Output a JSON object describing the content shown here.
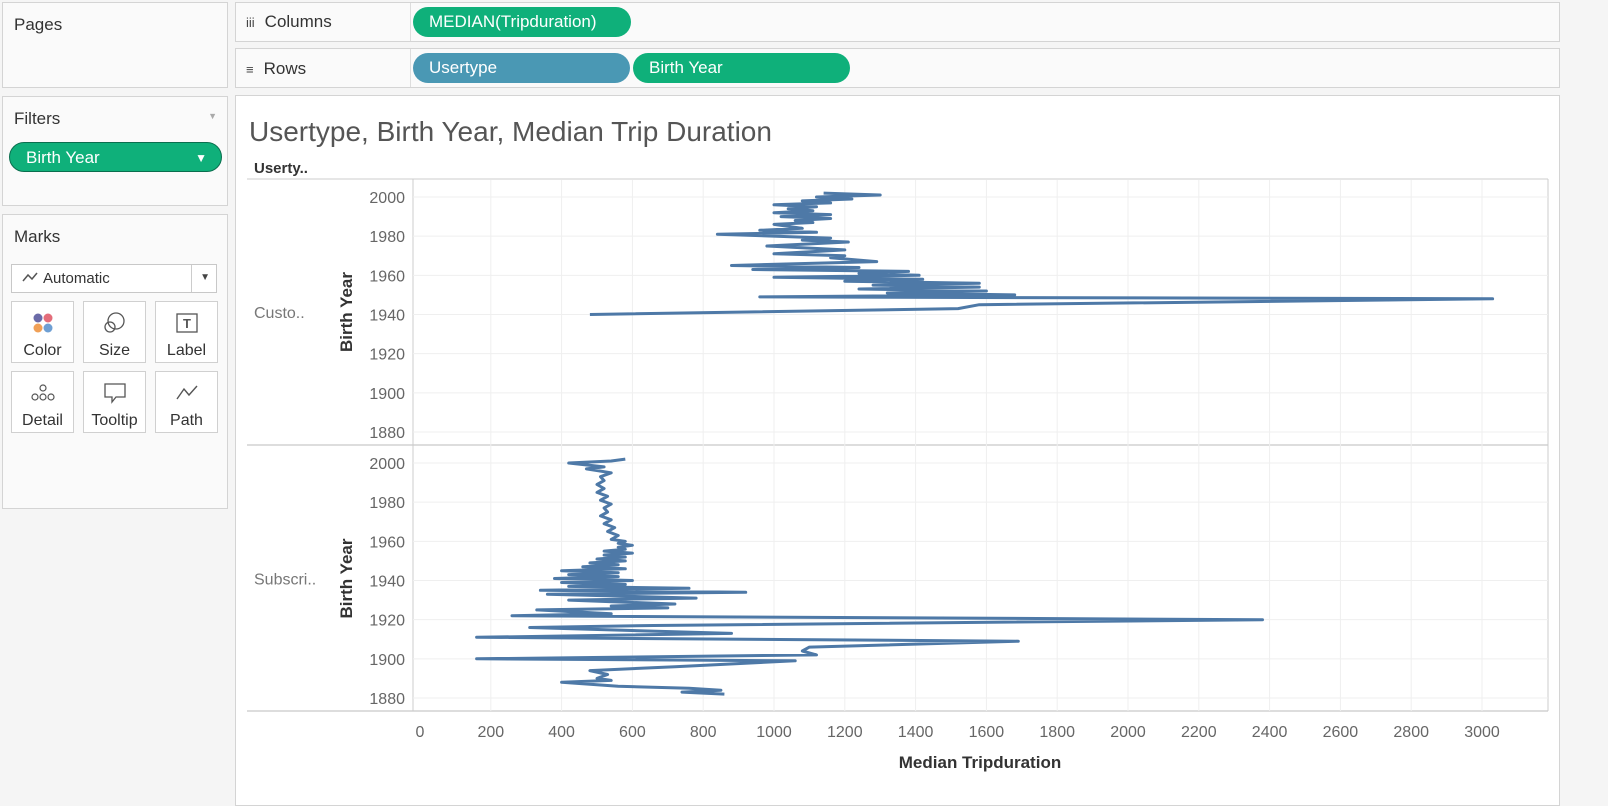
{
  "pages": {
    "title": "Pages"
  },
  "filters": {
    "title": "Filters",
    "pill_label": "Birth Year"
  },
  "marks": {
    "title": "Marks",
    "type_select": "Automatic",
    "buttons": [
      {
        "label": "Color",
        "icon": "color-dots-icon"
      },
      {
        "label": "Size",
        "icon": "size-circles-icon"
      },
      {
        "label": "Label",
        "icon": "text-label-icon"
      },
      {
        "label": "Detail",
        "icon": "detail-dots-icon"
      },
      {
        "label": "Tooltip",
        "icon": "speech-bubble-icon"
      },
      {
        "label": "Path",
        "icon": "path-line-icon"
      }
    ]
  },
  "shelves": {
    "columns": {
      "label": "Columns",
      "icon": "columns-icon",
      "pills": [
        "MEDIAN(Tripduration)"
      ]
    },
    "rows": {
      "label": "Rows",
      "icon": "rows-icon",
      "pills": [
        "Usertype",
        "Birth Year"
      ]
    }
  },
  "colors": {
    "green_pill": "#0fb07a",
    "blue_pill": "#4a98b4",
    "line": "#4e79a7"
  },
  "chart_data": {
    "type": "line",
    "title": "Usertype, Birth Year, Median Trip Duration",
    "row_header": "Userty..",
    "xlabel": "Median Tripduration",
    "ylabel": "Birth Year",
    "xlim": [
      0,
      3100
    ],
    "x_ticks": [
      0,
      200,
      400,
      600,
      800,
      1000,
      1200,
      1400,
      1600,
      1800,
      2000,
      2200,
      2400,
      2600,
      2800,
      3000
    ],
    "y_ticks": [
      2000,
      1980,
      1960,
      1940,
      1920,
      1900,
      1880
    ],
    "ylim": [
      1876,
      2005
    ],
    "grid": true,
    "panes": [
      {
        "label": "Custo..",
        "points": [
          [
            480,
            1940
          ],
          [
            1520,
            1943
          ],
          [
            1580,
            1945
          ],
          [
            3030,
            1948
          ],
          [
            960,
            1949
          ],
          [
            1680,
            1950
          ],
          [
            1320,
            1951
          ],
          [
            1600,
            1952
          ],
          [
            1240,
            1953
          ],
          [
            1580,
            1954
          ],
          [
            1280,
            1955
          ],
          [
            1580,
            1956
          ],
          [
            1200,
            1957
          ],
          [
            1420,
            1958
          ],
          [
            1000,
            1959
          ],
          [
            1410,
            1960
          ],
          [
            1240,
            1961
          ],
          [
            1380,
            1962
          ],
          [
            940,
            1963
          ],
          [
            1240,
            1964
          ],
          [
            880,
            1965
          ],
          [
            1290,
            1967
          ],
          [
            1160,
            1969
          ],
          [
            1200,
            1970
          ],
          [
            1000,
            1971
          ],
          [
            1200,
            1973
          ],
          [
            980,
            1975
          ],
          [
            1210,
            1977
          ],
          [
            1080,
            1978
          ],
          [
            1160,
            1979
          ],
          [
            840,
            1981
          ],
          [
            1120,
            1982
          ],
          [
            960,
            1983
          ],
          [
            1080,
            1984
          ],
          [
            1000,
            1986
          ],
          [
            1110,
            1987
          ],
          [
            1060,
            1988
          ],
          [
            1160,
            1989
          ],
          [
            1020,
            1990
          ],
          [
            1160,
            1991
          ],
          [
            1000,
            1992
          ],
          [
            1110,
            1993
          ],
          [
            1040,
            1994
          ],
          [
            1120,
            1995
          ],
          [
            1000,
            1996
          ],
          [
            1160,
            1997
          ],
          [
            1080,
            1998
          ],
          [
            1220,
            1999
          ],
          [
            1120,
            2000
          ],
          [
            1300,
            2001
          ],
          [
            1140,
            2002
          ]
        ]
      },
      {
        "label": "Subscri..",
        "points": [
          [
            860,
            1882
          ],
          [
            740,
            1883
          ],
          [
            850,
            1884
          ],
          [
            760,
            1885
          ],
          [
            560,
            1886
          ],
          [
            400,
            1888
          ],
          [
            540,
            1889
          ],
          [
            500,
            1890
          ],
          [
            530,
            1892
          ],
          [
            480,
            1894
          ],
          [
            720,
            1896
          ],
          [
            1060,
            1899
          ],
          [
            160,
            1900
          ],
          [
            1120,
            1902
          ],
          [
            1080,
            1904
          ],
          [
            1100,
            1906
          ],
          [
            1690,
            1909
          ],
          [
            160,
            1911
          ],
          [
            880,
            1913
          ],
          [
            310,
            1916
          ],
          [
            660,
            1917
          ],
          [
            2380,
            1920
          ],
          [
            260,
            1922
          ],
          [
            540,
            1923
          ],
          [
            330,
            1925
          ],
          [
            700,
            1926
          ],
          [
            540,
            1927
          ],
          [
            720,
            1928
          ],
          [
            420,
            1930
          ],
          [
            780,
            1931
          ],
          [
            360,
            1933
          ],
          [
            920,
            1934
          ],
          [
            340,
            1935
          ],
          [
            760,
            1936
          ],
          [
            420,
            1937
          ],
          [
            580,
            1938
          ],
          [
            400,
            1939
          ],
          [
            600,
            1940
          ],
          [
            380,
            1941
          ],
          [
            560,
            1942
          ],
          [
            420,
            1943
          ],
          [
            560,
            1944
          ],
          [
            400,
            1945
          ],
          [
            580,
            1946
          ],
          [
            460,
            1947
          ],
          [
            560,
            1948
          ],
          [
            480,
            1949
          ],
          [
            580,
            1950
          ],
          [
            500,
            1951
          ],
          [
            580,
            1952
          ],
          [
            520,
            1953
          ],
          [
            600,
            1954
          ],
          [
            520,
            1955
          ],
          [
            580,
            1956
          ],
          [
            560,
            1957
          ],
          [
            600,
            1958
          ],
          [
            560,
            1959
          ],
          [
            580,
            1960
          ],
          [
            540,
            1961
          ],
          [
            560,
            1963
          ],
          [
            530,
            1965
          ],
          [
            550,
            1967
          ],
          [
            520,
            1969
          ],
          [
            540,
            1971
          ],
          [
            510,
            1973
          ],
          [
            530,
            1975
          ],
          [
            520,
            1977
          ],
          [
            540,
            1979
          ],
          [
            510,
            1981
          ],
          [
            530,
            1983
          ],
          [
            500,
            1985
          ],
          [
            520,
            1987
          ],
          [
            500,
            1989
          ],
          [
            520,
            1991
          ],
          [
            510,
            1993
          ],
          [
            540,
            1995
          ],
          [
            470,
            1997
          ],
          [
            520,
            1998
          ],
          [
            420,
            2000
          ],
          [
            540,
            2001
          ],
          [
            580,
            2002
          ]
        ]
      }
    ]
  }
}
